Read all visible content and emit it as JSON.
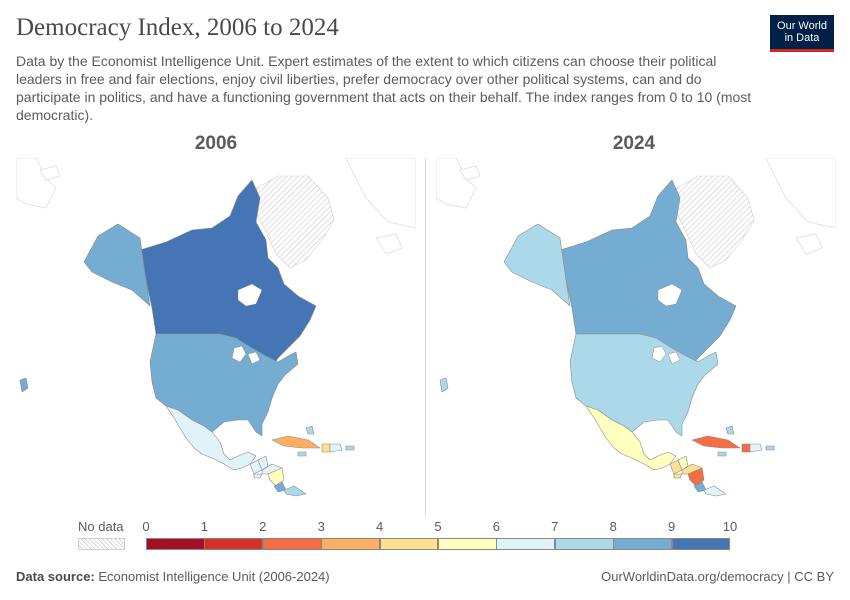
{
  "header": {
    "title": "Democracy Index, 2006 to 2024",
    "subtitle": "Data by the Economist Intelligence Unit. Expert estimates of the extent to which citizens can choose their political leaders in free and fair elections, enjoy civil liberties, prefer democracy over other political systems, can and do participate in politics, and have a functioning government that acts on their behalf. The index ranges from 0 to 10 (most democratic).",
    "logo_line1": "Our World",
    "logo_line2": "in Data"
  },
  "maps": [
    {
      "year": "2006",
      "values": {
        "canada": 9.07,
        "alaska": 8.22,
        "usa": 8.22,
        "mexico": 6.67,
        "guatemala": 6.07,
        "belize_region": 6.5,
        "honduras": 6.25,
        "el_salvador": 6.22,
        "nicaragua": 5.68,
        "costa_rica": 8.04,
        "panama": 7.35,
        "cuba": 3.52,
        "haiti": 4.19,
        "dominican_republic": 6.13,
        "jamaica": 7.34,
        "puerto_rico": 7.0,
        "bahamas": 7.0,
        "hawaii": 8.22,
        "greenland": null
      }
    },
    {
      "year": "2024",
      "values": {
        "canada": 8.69,
        "alaska": 7.85,
        "usa": 7.85,
        "mexico": 5.32,
        "guatemala": 4.55,
        "belize_region": 5.5,
        "honduras": 4.98,
        "el_salvador": 4.61,
        "nicaragua": 2.09,
        "costa_rica": 8.29,
        "panama": 6.91,
        "cuba": 2.58,
        "haiti": 2.74,
        "dominican_republic": 6.62,
        "jamaica": 7.13,
        "puerto_rico": 7.0,
        "bahamas": 7.0,
        "hawaii": 7.85,
        "greenland": null
      }
    }
  ],
  "legend": {
    "no_data_label": "No data",
    "ticks": [
      "0",
      "1",
      "2",
      "3",
      "4",
      "5",
      "6",
      "7",
      "8",
      "9",
      "10"
    ],
    "colors": [
      "#a50f26",
      "#d73027",
      "#f46d43",
      "#fdae61",
      "#fee090",
      "#ffffbf",
      "#e0f3f8",
      "#abd9e9",
      "#74add1",
      "#4575b4"
    ]
  },
  "footer": {
    "source_label": "Data source:",
    "source_text": "Economist Intelligence Unit (2006-2024)",
    "url_text": "OurWorldinData.org/democracy | CC BY"
  }
}
